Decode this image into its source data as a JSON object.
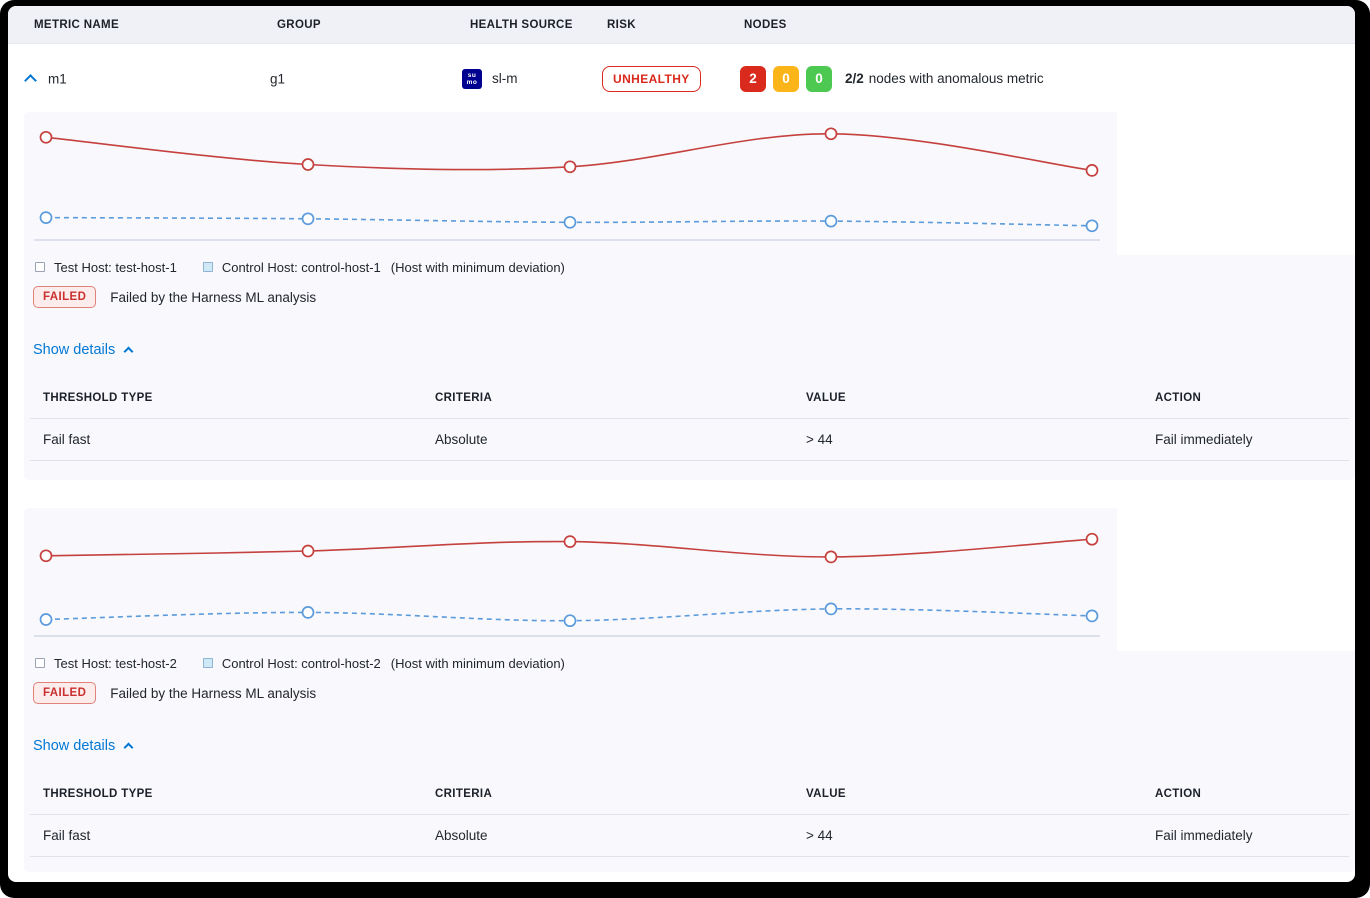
{
  "header": {
    "columns": [
      "METRIC NAME",
      "GROUP",
      "HEALTH SOURCE",
      "RISK",
      "NODES"
    ]
  },
  "metric_row": {
    "name": "m1",
    "group": "g1",
    "health_source": {
      "label": "sl-m",
      "icon_text_top": "su",
      "icon_text_bottom": "mo"
    },
    "risk": "UNHEALTHY",
    "nodes": {
      "anomalous_count": "2",
      "warning_count": "0",
      "healthy_count": "0",
      "ratio": "2/2",
      "text": "nodes with anomalous metric"
    }
  },
  "panels": [
    {
      "legend": {
        "test": "Test Host: test-host-1",
        "control": "Control Host: control-host-1",
        "note": "(Host with minimum deviation)"
      },
      "status": {
        "badge": "FAILED",
        "message": "Failed by the Harness ML analysis"
      },
      "details_link": "Show details",
      "table": {
        "headers": [
          "THRESHOLD TYPE",
          "CRITERIA",
          "VALUE",
          "ACTION"
        ],
        "rows": [
          [
            "Fail fast",
            "Absolute",
            "> 44",
            "Fail immediately"
          ]
        ]
      }
    },
    {
      "legend": {
        "test": "Test Host: test-host-2",
        "control": "Control Host: control-host-2",
        "note": "(Host with minimum deviation)"
      },
      "status": {
        "badge": "FAILED",
        "message": "Failed by the Harness ML analysis"
      },
      "details_link": "Show details",
      "table": {
        "headers": [
          "THRESHOLD TYPE",
          "CRITERIA",
          "VALUE",
          "ACTION"
        ],
        "rows": [
          [
            "Fail fast",
            "Absolute",
            "> 44",
            "Fail immediately"
          ]
        ]
      }
    }
  ],
  "chart_data": [
    {
      "type": "line",
      "title": "",
      "xlabel": "",
      "ylabel": "",
      "axes_visible": false,
      "grid": false,
      "legend_position": "bottom",
      "x": [
        1,
        2,
        3,
        4,
        5
      ],
      "ylim": [
        0,
        100
      ],
      "series": [
        {
          "name": "Test Host: test-host-1",
          "color_key": "red",
          "style": "solid",
          "marker": "open-circle",
          "values": [
            87,
            64,
            62,
            90,
            59
          ]
        },
        {
          "name": "Control Host: control-host-1",
          "color_key": "blue",
          "style": "dashed",
          "marker": "open-circle",
          "values": [
            19,
            18,
            15,
            16,
            12
          ]
        }
      ]
    },
    {
      "type": "line",
      "title": "",
      "xlabel": "",
      "ylabel": "",
      "axes_visible": false,
      "grid": false,
      "legend_position": "bottom",
      "x": [
        1,
        2,
        3,
        4,
        5
      ],
      "ylim": [
        0,
        100
      ],
      "series": [
        {
          "name": "Test Host: test-host-2",
          "color_key": "red",
          "style": "solid",
          "marker": "open-circle",
          "values": [
            68,
            72,
            80,
            67,
            82
          ]
        },
        {
          "name": "Control Host: control-host-2",
          "color_key": "blue",
          "style": "dashed",
          "marker": "open-circle",
          "values": [
            14,
            20,
            13,
            23,
            17
          ]
        }
      ]
    }
  ],
  "colors": {
    "accent_blue": "#0278d5",
    "risk_red": "#da291d",
    "failed_red": "#c9302e",
    "node_red": "#da291d",
    "node_yellow": "#fcb519",
    "node_green": "#4dc952",
    "line_red": "#c5413e",
    "line_blue": "#5b9bdb",
    "axis_line": "#ccd2df",
    "panel_bg": "#f8f8fd",
    "sumo_navy": "#000090"
  }
}
